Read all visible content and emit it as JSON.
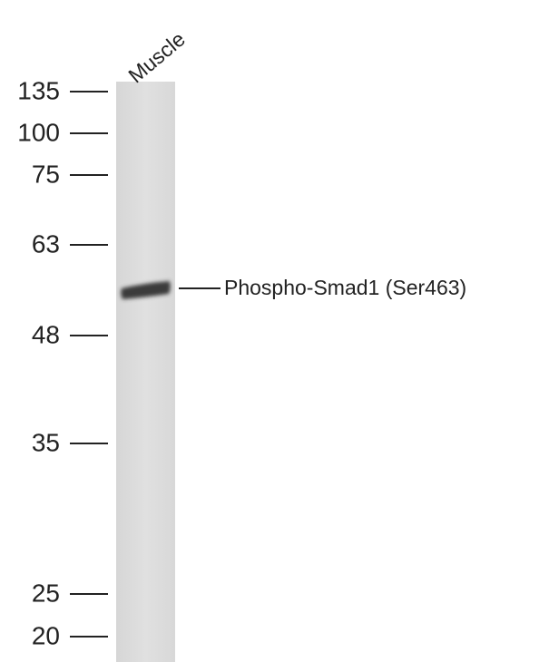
{
  "lane_label": "Muscle",
  "markers": [
    "135",
    "100",
    "75",
    "63",
    "48",
    "35",
    "25",
    "20"
  ],
  "band_label": "Phospho-Smad1 (Ser463)"
}
